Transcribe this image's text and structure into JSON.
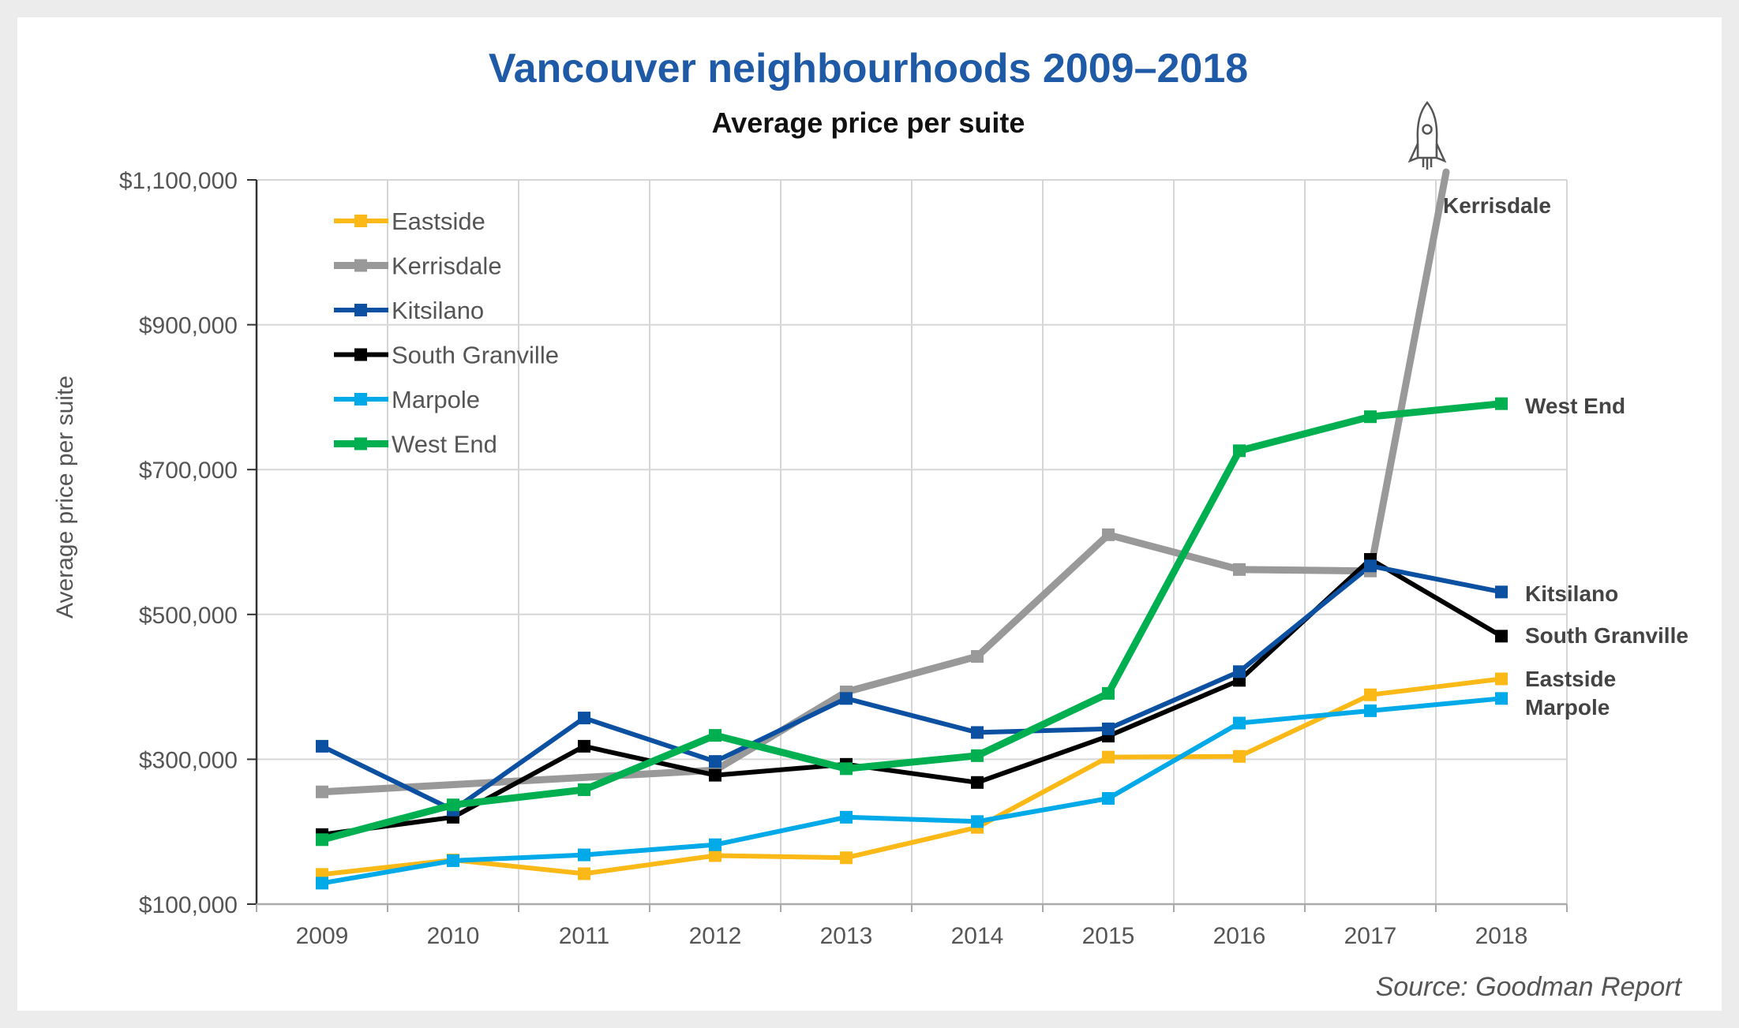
{
  "chart_data": {
    "type": "line",
    "title": "Vancouver neighbourhoods 2009–2018",
    "subtitle": "Average price per suite",
    "ylabel": "Average price per suite",
    "xlabel": "",
    "ylim": [
      100000,
      1100000
    ],
    "yticks": [
      100000,
      300000,
      500000,
      700000,
      900000,
      1100000
    ],
    "ytick_labels": [
      "$100,000",
      "$300,000",
      "$500,000",
      "$700,000",
      "$900,000",
      "$1,100,000"
    ],
    "categories": [
      "2009",
      "2010",
      "2011",
      "2012",
      "2013",
      "2014",
      "2015",
      "2016",
      "2017",
      "2018"
    ],
    "grid": true,
    "legend_position": "top-left",
    "series": [
      {
        "name": "Eastside",
        "color": "#fbb917",
        "values": [
          141000,
          161000,
          142000,
          167000,
          164000,
          206000,
          303000,
          304000,
          389000,
          411000
        ],
        "end_label": "Eastside"
      },
      {
        "name": "Kerrisdale",
        "color": "#999999",
        "values": [
          255000,
          null,
          null,
          285000,
          393000,
          442000,
          610000,
          562000,
          560000,
          null
        ],
        "end_label": "Kerrisdale",
        "annotation": "rocket-icon",
        "offscale_2018": true
      },
      {
        "name": "Kitsilano",
        "color": "#0c50a1",
        "values": [
          318000,
          230000,
          357000,
          297000,
          384000,
          337000,
          342000,
          421000,
          567000,
          531000
        ],
        "end_label": "Kitsilano"
      },
      {
        "name": "South Granville",
        "color": "#000000",
        "values": [
          196000,
          220000,
          318000,
          278000,
          293000,
          268000,
          332000,
          409000,
          576000,
          470000
        ],
        "end_label": "South Granville"
      },
      {
        "name": "Marpole",
        "color": "#00a9e8",
        "values": [
          129000,
          160000,
          168000,
          182000,
          220000,
          214000,
          246000,
          350000,
          367000,
          384000
        ],
        "end_label": "Marpole"
      },
      {
        "name": "West End",
        "color": "#00b050",
        "values": [
          189000,
          237000,
          258000,
          333000,
          287000,
          305000,
          391000,
          726000,
          773000,
          791000
        ],
        "end_label": "West End"
      }
    ]
  },
  "source": "Source: Goodman Report"
}
